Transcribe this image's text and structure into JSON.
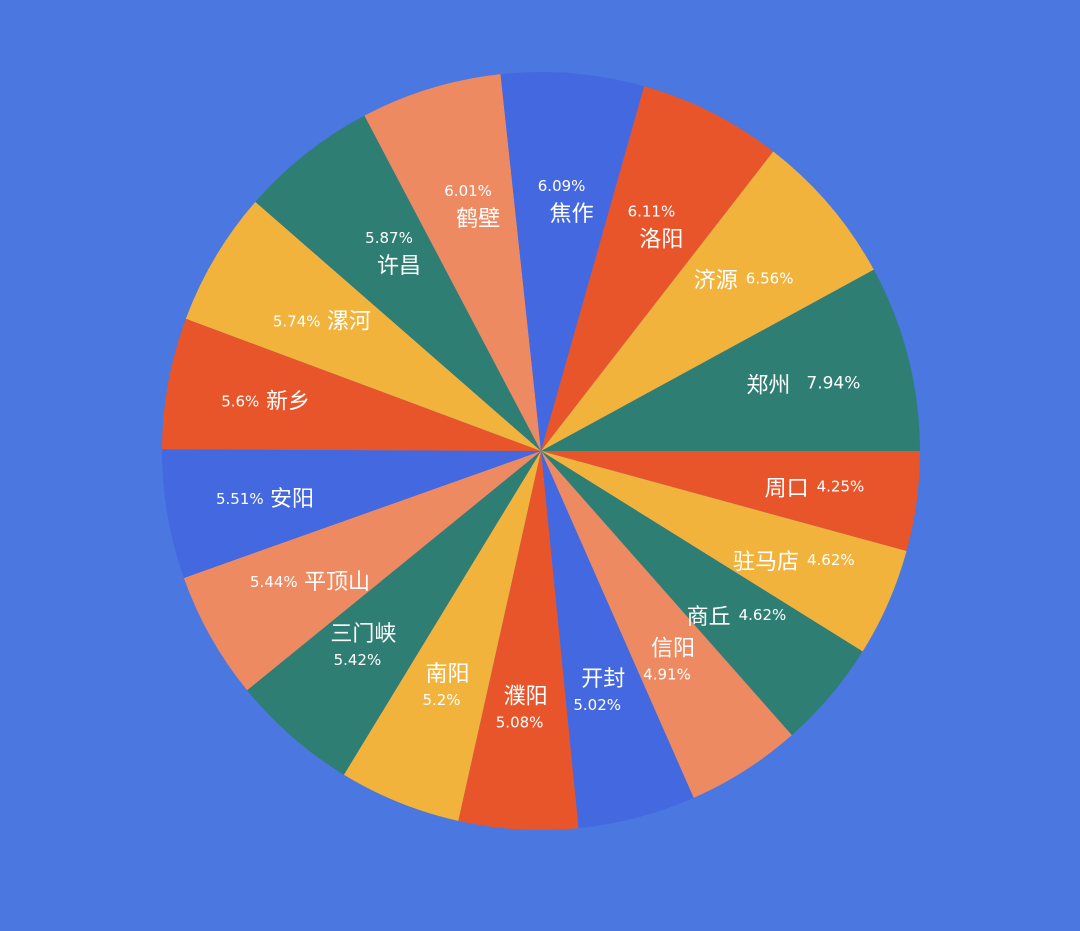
{
  "colors": {
    "background": "#4A77E0",
    "blue": "#4468E0",
    "red_orange": "#E8552A",
    "amber": "#F2B33D",
    "teal": "#2E7E73",
    "salmon": "#EE8A62"
  },
  "chart_data": {
    "type": "pie",
    "title": "",
    "legend": "none",
    "start_angle_deg": 90,
    "direction": "clockwise",
    "slices": [
      {
        "name": "郑州",
        "value": 7.94,
        "label": "7.94%",
        "color": "#2E7E73"
      },
      {
        "name": "周口",
        "value": 4.25,
        "label": "4.25%",
        "color": "#E8552A"
      },
      {
        "name": "驻马店",
        "value": 4.62,
        "label": "4.62%",
        "color": "#F2B33D"
      },
      {
        "name": "商丘",
        "value": 4.62,
        "label": "4.62%",
        "color": "#2E7E73"
      },
      {
        "name": "信阳",
        "value": 4.91,
        "label": "4.91%",
        "color": "#EE8A62"
      },
      {
        "name": "开封",
        "value": 5.02,
        "label": "5.02%",
        "color": "#4468E0"
      },
      {
        "name": "濮阳",
        "value": 5.08,
        "label": "5.08%",
        "color": "#E8552A"
      },
      {
        "name": "南阳",
        "value": 5.2,
        "label": "5.2%",
        "color": "#F2B33D"
      },
      {
        "name": "三门峡",
        "value": 5.42,
        "label": "5.42%",
        "color": "#2E7E73"
      },
      {
        "name": "平顶山",
        "value": 5.44,
        "label": "5.44%",
        "color": "#EE8A62"
      },
      {
        "name": "安阳",
        "value": 5.51,
        "label": "5.51%",
        "color": "#4468E0"
      },
      {
        "name": "新乡",
        "value": 5.6,
        "label": "5.6%",
        "color": "#E8552A"
      },
      {
        "name": "漯河",
        "value": 5.74,
        "label": "5.74%",
        "color": "#F2B33D"
      },
      {
        "name": "许昌",
        "value": 5.87,
        "label": "5.87%",
        "color": "#2E7E73"
      },
      {
        "name": "鹤壁",
        "value": 6.01,
        "label": "6.01%",
        "color": "#EE8A62"
      },
      {
        "name": "焦作",
        "value": 6.09,
        "label": "6.09%",
        "color": "#4468E0"
      },
      {
        "name": "洛阳",
        "value": 6.11,
        "label": "6.11%",
        "color": "#E8552A"
      },
      {
        "name": "济源",
        "value": 6.56,
        "label": "6.56%",
        "color": "#F2B33D"
      }
    ]
  }
}
